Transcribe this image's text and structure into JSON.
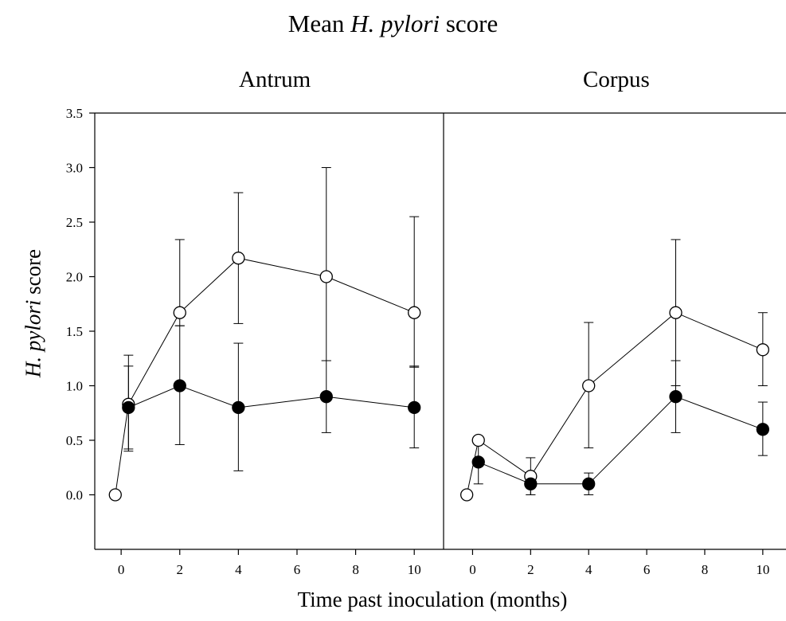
{
  "title_prefix": "Mean ",
  "title_italic": "H. pylori",
  "title_suffix": " score",
  "ylabel_italic": "H. pylori",
  "ylabel_suffix": " score",
  "xlabel": "Time past inoculation (months)",
  "chart_data": [
    {
      "type": "line",
      "title": "Antrum",
      "ylim": [
        -0.5,
        3.5
      ],
      "xlim": [
        -0.9,
        11.0
      ],
      "xticks": [
        0,
        2,
        4,
        6,
        8,
        10
      ],
      "yticks": [
        0.0,
        0.5,
        1.0,
        1.5,
        2.0,
        2.5,
        3.0,
        3.5
      ],
      "ytick_labels": [
        "0.0",
        "0.5",
        "1.0",
        "1.5",
        "2.0",
        "2.5",
        "3.0",
        "3.5"
      ],
      "series": [
        {
          "marker": "open-circle",
          "points": [
            {
              "x": -0.2,
              "y": 0.0
            },
            {
              "x": 0.25,
              "y": 0.83,
              "err_hi": 1.28,
              "err_lo": 0.42
            },
            {
              "x": 2,
              "y": 1.67,
              "err_hi": 2.34,
              "err_lo": 1.55
            },
            {
              "x": 4,
              "y": 2.17,
              "err_hi": 2.77,
              "err_lo": 1.57
            },
            {
              "x": 7,
              "y": 2.0,
              "err_hi": 3.0,
              "err_lo": 1.23
            },
            {
              "x": 10,
              "y": 1.67,
              "err_hi": 2.55,
              "err_lo": 1.17
            }
          ]
        },
        {
          "marker": "filled-circle",
          "points": [
            {
              "x": 0.25,
              "y": 0.8,
              "err_hi": 1.18,
              "err_lo": 0.4
            },
            {
              "x": 2,
              "y": 1.0,
              "err_hi": 1.55,
              "err_lo": 0.46
            },
            {
              "x": 4,
              "y": 0.8,
              "err_hi": 1.39,
              "err_lo": 0.22
            },
            {
              "x": 7,
              "y": 0.9,
              "err_hi": 1.23,
              "err_lo": 0.57
            },
            {
              "x": 10,
              "y": 0.8,
              "err_hi": 1.18,
              "err_lo": 0.43
            }
          ]
        }
      ]
    },
    {
      "type": "line",
      "title": "Corpus",
      "ylim": [
        -0.5,
        3.5
      ],
      "xlim": [
        -1.0,
        10.8
      ],
      "xticks": [
        0,
        2,
        4,
        6,
        8,
        10
      ],
      "series": [
        {
          "marker": "open-circle",
          "points": [
            {
              "x": -0.2,
              "y": 0.0
            },
            {
              "x": 0.2,
              "y": 0.5
            },
            {
              "x": 2,
              "y": 0.17,
              "err_hi": 0.34,
              "err_lo": 0.0
            },
            {
              "x": 4,
              "y": 1.0,
              "err_hi": 1.58,
              "err_lo": 0.43
            },
            {
              "x": 7,
              "y": 1.67,
              "err_hi": 2.34,
              "err_lo": 1.0
            },
            {
              "x": 10,
              "y": 1.33,
              "err_hi": 1.67,
              "err_lo": 1.0
            }
          ]
        },
        {
          "marker": "filled-circle",
          "points": [
            {
              "x": 0.2,
              "y": 0.3,
              "err_hi": 0.5,
              "err_lo": 0.1
            },
            {
              "x": 2,
              "y": 0.1,
              "err_hi": 0.2,
              "err_lo": 0.0
            },
            {
              "x": 4,
              "y": 0.1,
              "err_hi": 0.2,
              "err_lo": 0.0
            },
            {
              "x": 7,
              "y": 0.9,
              "err_hi": 1.23,
              "err_lo": 0.57
            },
            {
              "x": 10,
              "y": 0.6,
              "err_hi": 0.85,
              "err_lo": 0.36
            }
          ]
        }
      ]
    }
  ]
}
